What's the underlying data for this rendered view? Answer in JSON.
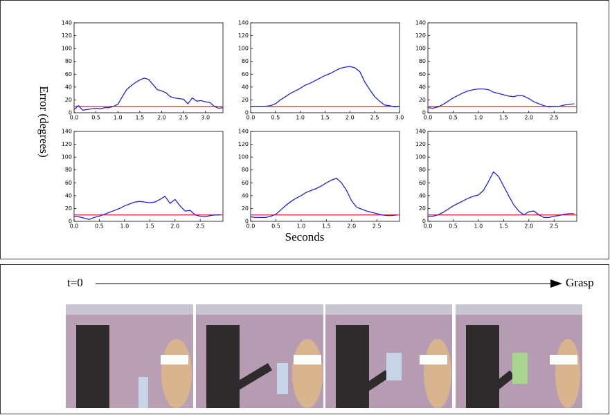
{
  "figure": {
    "ylabel": "Error (degrees)",
    "xlabel": "Seconds"
  },
  "timeline": {
    "start": "t=0",
    "end": "Grasp"
  },
  "chart_data": [
    {
      "type": "line",
      "xlim": [
        0,
        3.4
      ],
      "ylim": [
        0,
        140
      ],
      "xticks": [
        {
          "value": 0,
          "label": "0.0"
        },
        0.5,
        {
          "value": 1,
          "label": "1.0"
        },
        1.5,
        {
          "value": 2,
          "label": "2.0"
        },
        2.5,
        {
          "value": 3,
          "label": "3.0"
        }
      ],
      "yticks": [
        0,
        20,
        40,
        60,
        80,
        100,
        120,
        140
      ],
      "x": [
        0,
        0.1,
        0.2,
        0.3,
        0.4,
        0.5,
        0.6,
        0.7,
        0.8,
        0.9,
        1.0,
        1.1,
        1.2,
        1.3,
        1.4,
        1.5,
        1.6,
        1.7,
        1.8,
        1.9,
        2.0,
        2.1,
        2.2,
        2.3,
        2.4,
        2.5,
        2.6,
        2.7,
        2.8,
        2.9,
        3.0,
        3.1,
        3.2,
        3.3,
        3.4
      ],
      "series": [
        {
          "color": "#2222cc",
          "values": [
            5,
            11,
            4,
            5,
            6,
            7,
            6,
            8,
            8,
            10,
            13,
            25,
            36,
            42,
            47,
            51,
            54,
            52,
            44,
            36,
            34,
            31,
            25,
            23,
            22,
            21,
            14,
            23,
            18,
            19,
            17,
            16,
            10,
            7,
            8
          ]
        }
      ],
      "threshold": {
        "value": 10,
        "color": "#e02020"
      }
    },
    {
      "type": "line",
      "xlim": [
        0,
        3.0
      ],
      "ylim": [
        0,
        140
      ],
      "xticks": [
        {
          "value": 0,
          "label": "0.0"
        },
        0.5,
        {
          "value": 1,
          "label": "1.0"
        },
        1.5,
        {
          "value": 2,
          "label": "2.0"
        },
        2.5,
        {
          "value": 3,
          "label": "3.0"
        }
      ],
      "yticks": [
        0,
        20,
        40,
        60,
        80,
        100,
        120,
        140
      ],
      "x": [
        0,
        0.1,
        0.2,
        0.3,
        0.4,
        0.5,
        0.6,
        0.7,
        0.8,
        0.9,
        1.0,
        1.1,
        1.2,
        1.3,
        1.4,
        1.5,
        1.6,
        1.7,
        1.8,
        1.9,
        2.0,
        2.1,
        2.2,
        2.3,
        2.4,
        2.5,
        2.6,
        2.7,
        2.8,
        2.9,
        3.0
      ],
      "series": [
        {
          "color": "#2222cc",
          "values": [
            10,
            10,
            10,
            10,
            11,
            14,
            20,
            25,
            30,
            34,
            38,
            43,
            46,
            50,
            54,
            58,
            61,
            65,
            69,
            71,
            72,
            70,
            64,
            48,
            36,
            25,
            18,
            12,
            11,
            9,
            10
          ]
        }
      ],
      "threshold": {
        "value": 10,
        "color": "#e02020"
      }
    },
    {
      "type": "line",
      "xlim": [
        0,
        2.95
      ],
      "ylim": [
        0,
        140
      ],
      "xticks": [
        {
          "value": 0,
          "label": "0.0"
        },
        0.5,
        {
          "value": 1,
          "label": "1.0"
        },
        1.5,
        {
          "value": 2,
          "label": "2.0"
        },
        2.5
      ],
      "yticks": [
        0,
        20,
        40,
        60,
        80,
        100,
        120,
        140
      ],
      "x": [
        0,
        0.1,
        0.2,
        0.3,
        0.4,
        0.5,
        0.6,
        0.7,
        0.8,
        0.9,
        1.0,
        1.1,
        1.2,
        1.3,
        1.4,
        1.5,
        1.6,
        1.7,
        1.8,
        1.9,
        2.0,
        2.1,
        2.2,
        2.3,
        2.4,
        2.5,
        2.6,
        2.7,
        2.8,
        2.9
      ],
      "series": [
        {
          "color": "#2222cc",
          "values": [
            8,
            7,
            9,
            13,
            18,
            23,
            27,
            31,
            34,
            36,
            37,
            37,
            36,
            32,
            30,
            28,
            26,
            25,
            27,
            26,
            22,
            17,
            14,
            11,
            9,
            10,
            10,
            12,
            13,
            14
          ]
        }
      ],
      "threshold": {
        "value": 10,
        "color": "#e02020"
      }
    },
    {
      "type": "line",
      "xlim": [
        0,
        2.95
      ],
      "ylim": [
        0,
        140
      ],
      "xticks": [
        {
          "value": 0,
          "label": "0.0"
        },
        0.5,
        {
          "value": 1,
          "label": "1.0"
        },
        1.5,
        {
          "value": 2,
          "label": "2.0"
        },
        2.5
      ],
      "yticks": [
        0,
        20,
        40,
        60,
        80,
        100,
        120,
        140
      ],
      "x": [
        0,
        0.1,
        0.2,
        0.3,
        0.4,
        0.5,
        0.6,
        0.7,
        0.8,
        0.9,
        1.0,
        1.1,
        1.2,
        1.3,
        1.4,
        1.5,
        1.6,
        1.7,
        1.8,
        1.9,
        2.0,
        2.1,
        2.2,
        2.3,
        2.4,
        2.5,
        2.6,
        2.7,
        2.8,
        2.9
      ],
      "series": [
        {
          "color": "#2222cc",
          "values": [
            8,
            7,
            5,
            3,
            6,
            8,
            11,
            14,
            17,
            20,
            24,
            27,
            30,
            31,
            30,
            29,
            30,
            34,
            39,
            28,
            34,
            24,
            16,
            17,
            10,
            8,
            7,
            9,
            10,
            10
          ]
        }
      ],
      "threshold": {
        "value": 10,
        "color": "#e02020"
      }
    },
    {
      "type": "line",
      "xlim": [
        0,
        2.95
      ],
      "ylim": [
        0,
        140
      ],
      "xticks": [
        {
          "value": 0,
          "label": "0.0"
        },
        0.5,
        {
          "value": 1,
          "label": "1.0"
        },
        1.5,
        {
          "value": 2,
          "label": "2.0"
        },
        2.5
      ],
      "yticks": [
        0,
        20,
        40,
        60,
        80,
        100,
        120,
        140
      ],
      "x": [
        0,
        0.1,
        0.2,
        0.3,
        0.4,
        0.5,
        0.6,
        0.7,
        0.8,
        0.9,
        1.0,
        1.1,
        1.2,
        1.3,
        1.4,
        1.5,
        1.6,
        1.7,
        1.8,
        1.9,
        2.0,
        2.1,
        2.2,
        2.3,
        2.4,
        2.5,
        2.6,
        2.7,
        2.8,
        2.9
      ],
      "series": [
        {
          "color": "#2222cc",
          "values": [
            7,
            6,
            6,
            6,
            8,
            11,
            18,
            25,
            31,
            36,
            40,
            45,
            48,
            51,
            55,
            60,
            64,
            67,
            60,
            48,
            32,
            22,
            19,
            16,
            14,
            12,
            10,
            9,
            9,
            10
          ]
        }
      ],
      "threshold": {
        "value": 10,
        "color": "#e02020"
      }
    },
    {
      "type": "line",
      "xlim": [
        0,
        2.95
      ],
      "ylim": [
        0,
        140
      ],
      "xticks": [
        {
          "value": 0,
          "label": "0.0"
        },
        0.5,
        {
          "value": 1,
          "label": "1.0"
        },
        1.5,
        {
          "value": 2,
          "label": "2.0"
        },
        2.5
      ],
      "yticks": [
        0,
        20,
        40,
        60,
        80,
        100,
        120,
        140
      ],
      "x": [
        0,
        0.1,
        0.2,
        0.3,
        0.4,
        0.5,
        0.6,
        0.7,
        0.8,
        0.9,
        1.0,
        1.1,
        1.2,
        1.3,
        1.4,
        1.5,
        1.6,
        1.7,
        1.8,
        1.9,
        2.0,
        2.1,
        2.2,
        2.3,
        2.4,
        2.5,
        2.6,
        2.7,
        2.8,
        2.9
      ],
      "series": [
        {
          "color": "#2222cc",
          "values": [
            8,
            8,
            10,
            14,
            19,
            24,
            28,
            32,
            36,
            39,
            41,
            48,
            62,
            77,
            70,
            55,
            40,
            26,
            16,
            10,
            15,
            16,
            10,
            6,
            6,
            8,
            9,
            11,
            12,
            12
          ]
        }
      ],
      "threshold": {
        "value": 10,
        "color": "#e02020"
      }
    }
  ]
}
